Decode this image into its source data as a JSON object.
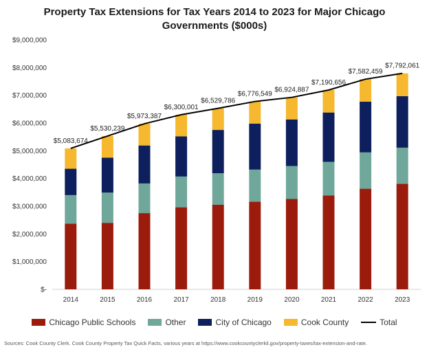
{
  "chart_data": {
    "type": "bar",
    "stacked": true,
    "title_line1": "Property Tax Extensions for Tax Years 2014 to 2023 for Major Chicago",
    "title_line2": "Governments ($000s)",
    "xlabel": "",
    "ylabel": "",
    "categories": [
      "2014",
      "2015",
      "2016",
      "2017",
      "2018",
      "2019",
      "2020",
      "2021",
      "2022",
      "2023"
    ],
    "ylim": [
      0,
      9000000
    ],
    "yticks": [
      0,
      1000000,
      2000000,
      3000000,
      4000000,
      5000000,
      6000000,
      7000000,
      8000000,
      9000000
    ],
    "ytick_labels": [
      "$-",
      "$1,000,000",
      "$2,000,000",
      "$3,000,000",
      "$4,000,000",
      "$5,000,000",
      "$6,000,000",
      "$7,000,000",
      "$8,000,000",
      "$9,000,000"
    ],
    "grid": false,
    "legend_position": "bottom",
    "series": [
      {
        "name": "Chicago Public Schools",
        "color": "#9b1c0c",
        "values": [
          2370000,
          2400000,
          2750000,
          2960000,
          3050000,
          3160000,
          3260000,
          3390000,
          3630000,
          3810000
        ]
      },
      {
        "name": "Other",
        "color": "#6fa89a",
        "values": [
          1030000,
          1090000,
          1070000,
          1110000,
          1140000,
          1160000,
          1190000,
          1210000,
          1310000,
          1300000
        ]
      },
      {
        "name": "City of Chicago",
        "color": "#0d1f5c",
        "values": [
          950000,
          1260000,
          1370000,
          1450000,
          1560000,
          1660000,
          1680000,
          1780000,
          1830000,
          1860000
        ]
      },
      {
        "name": "Cook County",
        "color": "#f5b82e",
        "values": [
          733674,
          780239,
          783387,
          780001,
          779786,
          796549,
          794887,
          810656,
          812459,
          822061
        ]
      }
    ],
    "total": {
      "name": "Total",
      "color": "#000000",
      "values": [
        5083674,
        5530239,
        5973387,
        6300001,
        6529786,
        6776549,
        6924887,
        7190656,
        7582459,
        7792061
      ],
      "labels": [
        "$5,083,674",
        "$5,530,239",
        "$5,973,387",
        "$6,300,001",
        "$6,529,786",
        "$6,776,549",
        "$6,924,887",
        "$7,190,656",
        "$7,582,459",
        "$7,792,061"
      ]
    }
  },
  "source_text": "Sources: Cook County Clerk. Cook County Property Tax Quick Facts, various years at https://www.cookcountyclerkil.gov/property-taxes/tax-extension-and-rate."
}
